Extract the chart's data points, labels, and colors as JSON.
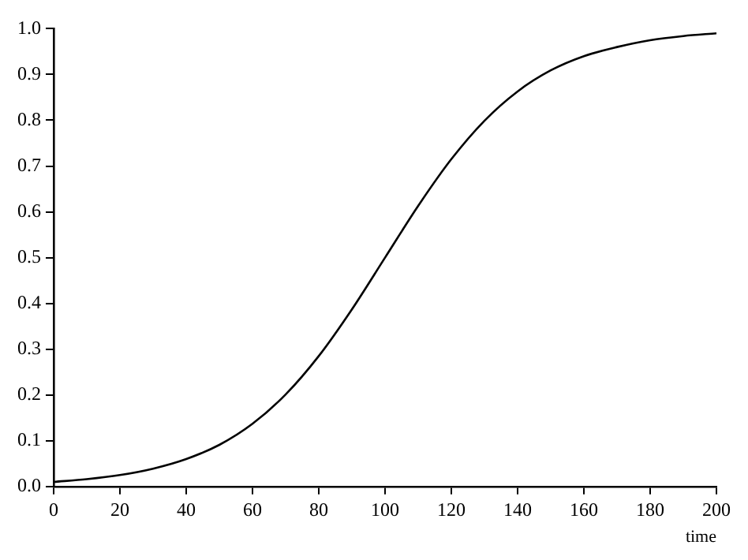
{
  "chart_data": {
    "type": "line",
    "xlabel": "time",
    "x": [
      0,
      10,
      20,
      30,
      40,
      50,
      60,
      70,
      80,
      90,
      100,
      110,
      120,
      130,
      140,
      150,
      160,
      170,
      180,
      190,
      200
    ],
    "series": [
      {
        "color": "#000000",
        "values": [
          0.01,
          0.016,
          0.025,
          0.039,
          0.06,
          0.091,
          0.137,
          0.201,
          0.285,
          0.387,
          0.5,
          0.613,
          0.715,
          0.799,
          0.863,
          0.909,
          0.94,
          0.96,
          0.975,
          0.984,
          0.99
        ]
      }
    ],
    "xlim": [
      0,
      200
    ],
    "xticks": [
      0,
      20,
      40,
      60,
      80,
      100,
      120,
      140,
      160,
      180,
      200
    ],
    "ylim": [
      0,
      1
    ],
    "yticks": [
      {
        "value": 0,
        "label": "0.0"
      },
      {
        "value": 0.1,
        "label": "0.1"
      },
      {
        "value": 0.2,
        "label": "0.2"
      },
      {
        "value": 0.3,
        "label": "0.3"
      },
      {
        "value": 0.4,
        "label": "0.4"
      },
      {
        "value": 0.5,
        "label": "0.5"
      },
      {
        "value": 0.6,
        "label": "0.6"
      },
      {
        "value": 0.7,
        "label": "0.7"
      },
      {
        "value": 0.8,
        "label": "0.8"
      },
      {
        "value": 0.9,
        "label": "0.9"
      },
      {
        "value": 1,
        "label": "1.0"
      }
    ],
    "grid": false,
    "legend": false,
    "marker": "none",
    "line_style": "solid"
  }
}
